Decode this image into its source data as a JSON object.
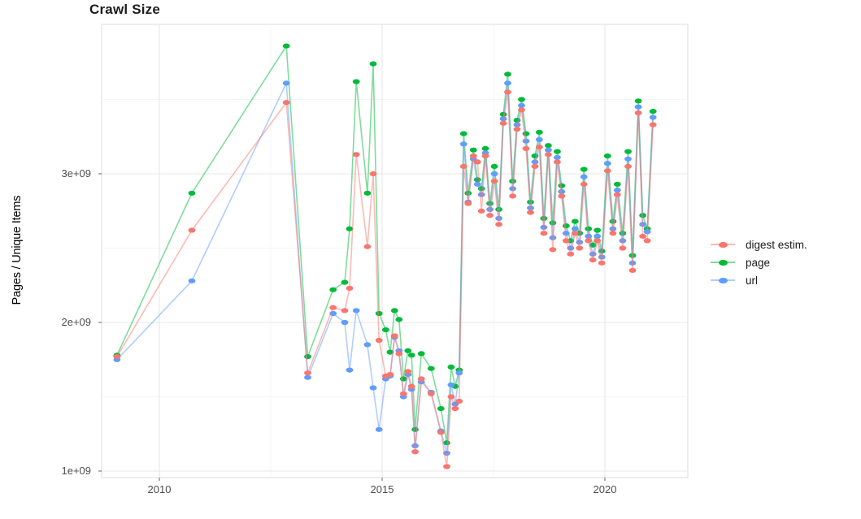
{
  "chart_data": {
    "type": "line",
    "title": "Crawl Size",
    "xlabel": "",
    "ylabel": "Pages / Unique Items",
    "y_unit": "value × 1e9 (pages / unique items)",
    "x_unit": "year (decimal)",
    "xlim": [
      2008.7,
      2021.9
    ],
    "ylim_e9": [
      0.95,
      4.0
    ],
    "grid": true,
    "legend_position": "right",
    "x_ticks": {
      "labels": [
        "2010",
        "2015",
        "2020"
      ],
      "major": [
        2010,
        2015,
        2020
      ],
      "minor": [
        2012.5,
        2017.5
      ]
    },
    "y_ticks": {
      "labels": [
        "1e+09",
        "2e+09",
        "3e+09"
      ],
      "major_e9": [
        1,
        2,
        3
      ],
      "minor_e9": [
        1.5,
        2.5,
        3.5
      ]
    },
    "x": [
      2009.05,
      2010.73,
      2012.85,
      2013.33,
      2013.9,
      2014.16,
      2014.27,
      2014.42,
      2014.67,
      2014.8,
      2014.93,
      2015.08,
      2015.18,
      2015.28,
      2015.38,
      2015.48,
      2015.58,
      2015.66,
      2015.74,
      2015.88,
      2016.1,
      2016.32,
      2016.45,
      2016.55,
      2016.64,
      2016.73,
      2016.83,
      2016.93,
      2017.05,
      2017.14,
      2017.23,
      2017.32,
      2017.42,
      2017.52,
      2017.62,
      2017.72,
      2017.82,
      2017.93,
      2018.03,
      2018.13,
      2018.23,
      2018.33,
      2018.43,
      2018.53,
      2018.63,
      2018.73,
      2018.83,
      2018.93,
      2019.03,
      2019.13,
      2019.23,
      2019.33,
      2019.43,
      2019.53,
      2019.63,
      2019.73,
      2019.83,
      2019.93,
      2020.06,
      2020.18,
      2020.28,
      2020.4,
      2020.52,
      2020.62,
      2020.75,
      2020.85,
      2020.95,
      2021.08
    ],
    "series": [
      {
        "name": "digest estim.",
        "color": "#F8766D",
        "values_e9": [
          1.77,
          2.62,
          3.48,
          1.66,
          2.1,
          2.08,
          2.23,
          3.13,
          2.51,
          3.0,
          1.88,
          1.64,
          1.65,
          1.91,
          1.79,
          1.52,
          1.67,
          1.57,
          1.13,
          1.62,
          1.52,
          1.26,
          1.03,
          1.5,
          1.42,
          1.47,
          3.05,
          2.8,
          3.12,
          3.08,
          2.75,
          3.12,
          2.72,
          2.95,
          2.66,
          3.34,
          3.55,
          2.85,
          3.3,
          3.43,
          3.17,
          2.74,
          3.05,
          3.18,
          2.6,
          3.13,
          2.49,
          3.08,
          2.85,
          2.55,
          2.46,
          2.6,
          2.5,
          2.93,
          2.55,
          2.42,
          2.55,
          2.4,
          3.02,
          2.6,
          2.86,
          2.5,
          3.05,
          2.35,
          3.41,
          2.58,
          2.55,
          3.33
        ]
      },
      {
        "name": "page",
        "color": "#00BA38",
        "values_e9": [
          1.78,
          2.87,
          3.86,
          1.77,
          2.22,
          2.27,
          2.63,
          3.62,
          2.87,
          3.74,
          2.06,
          1.95,
          1.8,
          2.08,
          2.02,
          1.62,
          1.81,
          1.78,
          1.28,
          1.79,
          1.69,
          1.42,
          1.19,
          1.7,
          1.57,
          1.68,
          3.27,
          2.87,
          3.16,
          2.96,
          2.9,
          3.17,
          2.8,
          3.05,
          2.76,
          3.4,
          3.67,
          2.95,
          3.36,
          3.5,
          3.27,
          2.81,
          3.12,
          3.28,
          2.7,
          3.19,
          2.67,
          3.15,
          2.92,
          2.65,
          2.55,
          2.68,
          2.6,
          3.03,
          2.63,
          2.52,
          2.62,
          2.48,
          3.12,
          2.68,
          2.93,
          2.6,
          3.15,
          2.45,
          3.49,
          2.72,
          2.63,
          3.42
        ]
      },
      {
        "name": "url",
        "color": "#619CFF",
        "values_e9": [
          1.75,
          2.28,
          3.61,
          1.63,
          2.06,
          2.0,
          1.68,
          2.08,
          1.85,
          1.56,
          1.28,
          1.62,
          1.64,
          1.9,
          1.81,
          1.5,
          1.65,
          1.55,
          1.17,
          1.6,
          1.53,
          1.27,
          1.12,
          1.58,
          1.45,
          1.66,
          3.2,
          2.81,
          3.1,
          2.93,
          2.86,
          3.14,
          2.76,
          3.0,
          2.7,
          3.37,
          3.61,
          2.9,
          3.33,
          3.46,
          3.22,
          2.77,
          3.08,
          3.23,
          2.64,
          3.16,
          2.57,
          3.11,
          2.88,
          2.6,
          2.5,
          2.63,
          2.54,
          2.98,
          2.58,
          2.46,
          2.58,
          2.44,
          3.07,
          2.63,
          2.89,
          2.55,
          3.1,
          2.4,
          3.45,
          2.66,
          2.61,
          3.38
        ]
      }
    ],
    "style": {
      "grid_major_color": "#e7e7e7",
      "grid_minor_color": "#f2f2f2",
      "panel_border_color": "#dcdcdc",
      "tick_mark_color": "#666666",
      "tick_label_color": "#4d4d4d",
      "text_color": "#1a1a1a",
      "line_opacity": 0.5,
      "point_rx": 4.4,
      "point_ry": 3.1
    }
  }
}
